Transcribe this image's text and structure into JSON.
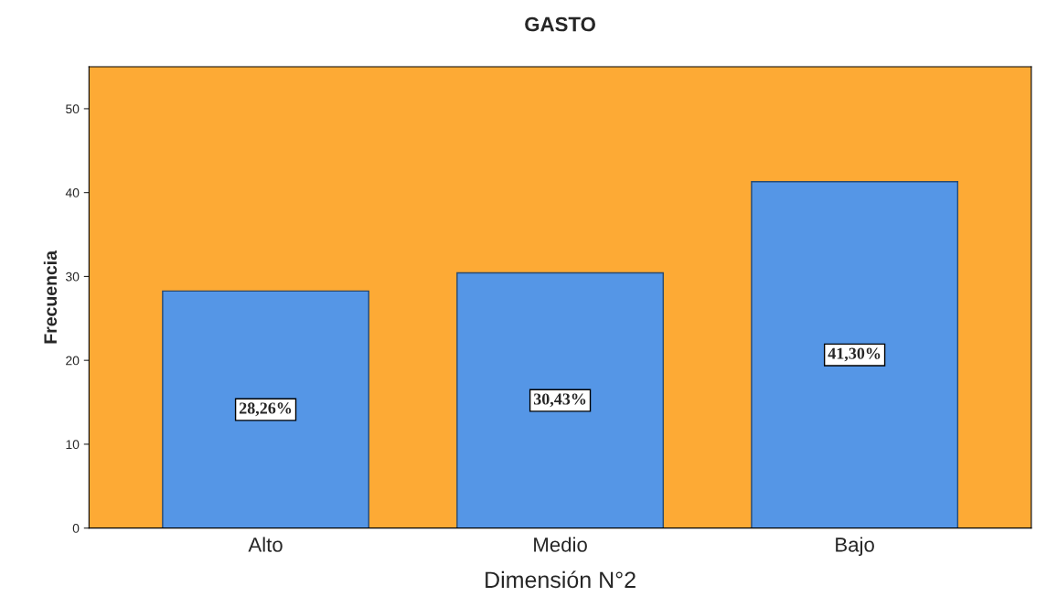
{
  "chart_data": {
    "type": "bar",
    "title": "GASTO",
    "xlabel": "Dimensión N°2",
    "ylabel": "Frecuencia",
    "categories": [
      "Alto",
      "Medio",
      "Bajo"
    ],
    "values": [
      28.26,
      30.43,
      41.3
    ],
    "color": "#5596e6",
    "value_labels": [
      "28,26%",
      "30,43%",
      "41,30%"
    ],
    "ylim": [
      0,
      55
    ],
    "yticks": [
      0,
      10,
      20,
      30,
      40,
      50
    ],
    "grid": false,
    "legend": false
  }
}
